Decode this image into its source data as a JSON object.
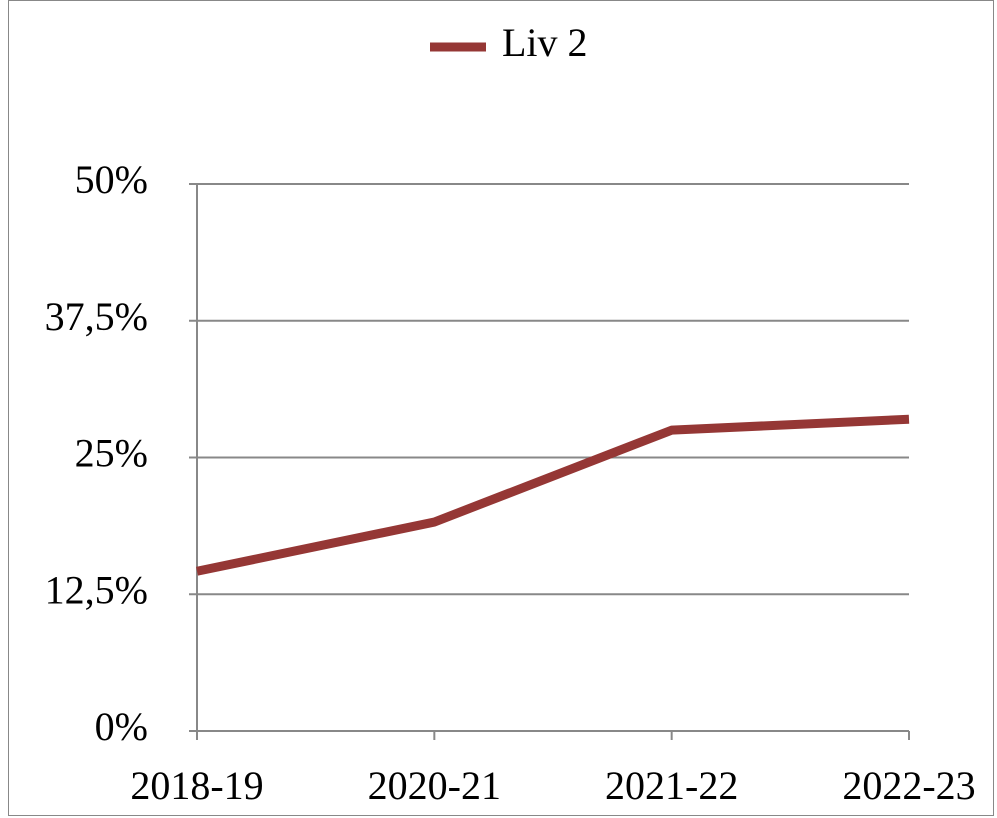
{
  "chart_data": {
    "type": "line",
    "categories": [
      "2018-19",
      "2020-21",
      "2021-22",
      "2022-23"
    ],
    "series": [
      {
        "name": "Liv 2",
        "color": "#953735",
        "values": [
          14.6,
          19.1,
          27.5,
          28.5
        ]
      }
    ],
    "ylim": [
      0,
      50
    ],
    "yticks": [
      {
        "value": 0,
        "label": "0%"
      },
      {
        "value": 12.5,
        "label": "12,5%"
      },
      {
        "value": 25,
        "label": "25%"
      },
      {
        "value": 37.5,
        "label": "37,5%"
      },
      {
        "value": 50,
        "label": "50%"
      }
    ],
    "grid": true,
    "legend": "top"
  }
}
